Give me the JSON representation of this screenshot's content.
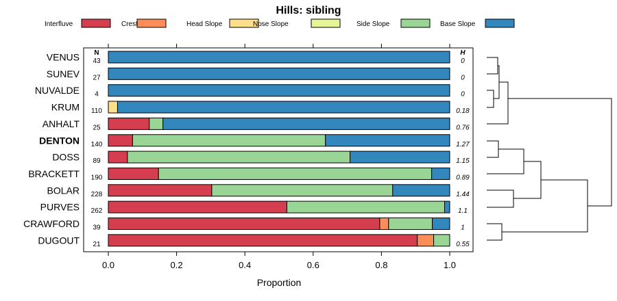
{
  "chart_data": {
    "type": "bar",
    "stacked": "horizontal-proportion",
    "title": "Hills: sibling",
    "xlabel": "Proportion",
    "ylabel": "",
    "xlim": [
      0,
      1
    ],
    "x_ticks": [
      "0.0",
      "0.2",
      "0.4",
      "0.6",
      "0.8",
      "1.0"
    ],
    "n_header": "N",
    "h_header": "H",
    "legend_position": "top",
    "legend": [
      {
        "name": "Interfluve",
        "color": "#D53E4F"
      },
      {
        "name": "Crest",
        "color": "#FC8D59"
      },
      {
        "name": "Head Slope",
        "color": "#FEE08B"
      },
      {
        "name": "Nose Slope",
        "color": "#E6F598"
      },
      {
        "name": "Side Slope",
        "color": "#99D594"
      },
      {
        "name": "Base Slope",
        "color": "#3288BD"
      }
    ],
    "highlight": "DENTON",
    "rows": [
      {
        "label": "VENUS",
        "n": "43",
        "h": "0",
        "values": [
          0,
          0,
          0,
          0,
          0,
          1.0
        ]
      },
      {
        "label": "SUNEV",
        "n": "27",
        "h": "0",
        "values": [
          0,
          0,
          0,
          0,
          0,
          1.0
        ]
      },
      {
        "label": "NUVALDE",
        "n": "4",
        "h": "0",
        "values": [
          0,
          0,
          0,
          0,
          0,
          1.0
        ]
      },
      {
        "label": "KRUM",
        "n": "110",
        "h": "0.18",
        "values": [
          0,
          0,
          0.027,
          0,
          0,
          0.973
        ]
      },
      {
        "label": "ANHALT",
        "n": "25",
        "h": "0.76",
        "values": [
          0.12,
          0,
          0,
          0,
          0.04,
          0.84
        ]
      },
      {
        "label": "DENTON",
        "n": "140",
        "h": "1.27",
        "values": [
          0.071,
          0,
          0,
          0,
          0.565,
          0.364
        ]
      },
      {
        "label": "DOSS",
        "n": "89",
        "h": "1.15",
        "values": [
          0.056,
          0,
          0,
          0,
          0.652,
          0.292
        ]
      },
      {
        "label": "BRACKETT",
        "n": "190",
        "h": "0.89",
        "values": [
          0.147,
          0,
          0,
          0,
          0.8,
          0.053
        ]
      },
      {
        "label": "BOLAR",
        "n": "228",
        "h": "1.44",
        "values": [
          0.303,
          0,
          0,
          0,
          0.53,
          0.167
        ]
      },
      {
        "label": "PURVES",
        "n": "262",
        "h": "1.1",
        "values": [
          0.523,
          0,
          0,
          0,
          0.462,
          0.015
        ]
      },
      {
        "label": "CRAWFORD",
        "n": "39",
        "h": "1",
        "values": [
          0.795,
          0.026,
          0,
          0,
          0.128,
          0.051
        ]
      },
      {
        "label": "DUGOUT",
        "n": "21",
        "h": "0.55",
        "values": [
          0.905,
          0.048,
          0,
          0,
          0.047,
          0
        ]
      }
    ]
  }
}
